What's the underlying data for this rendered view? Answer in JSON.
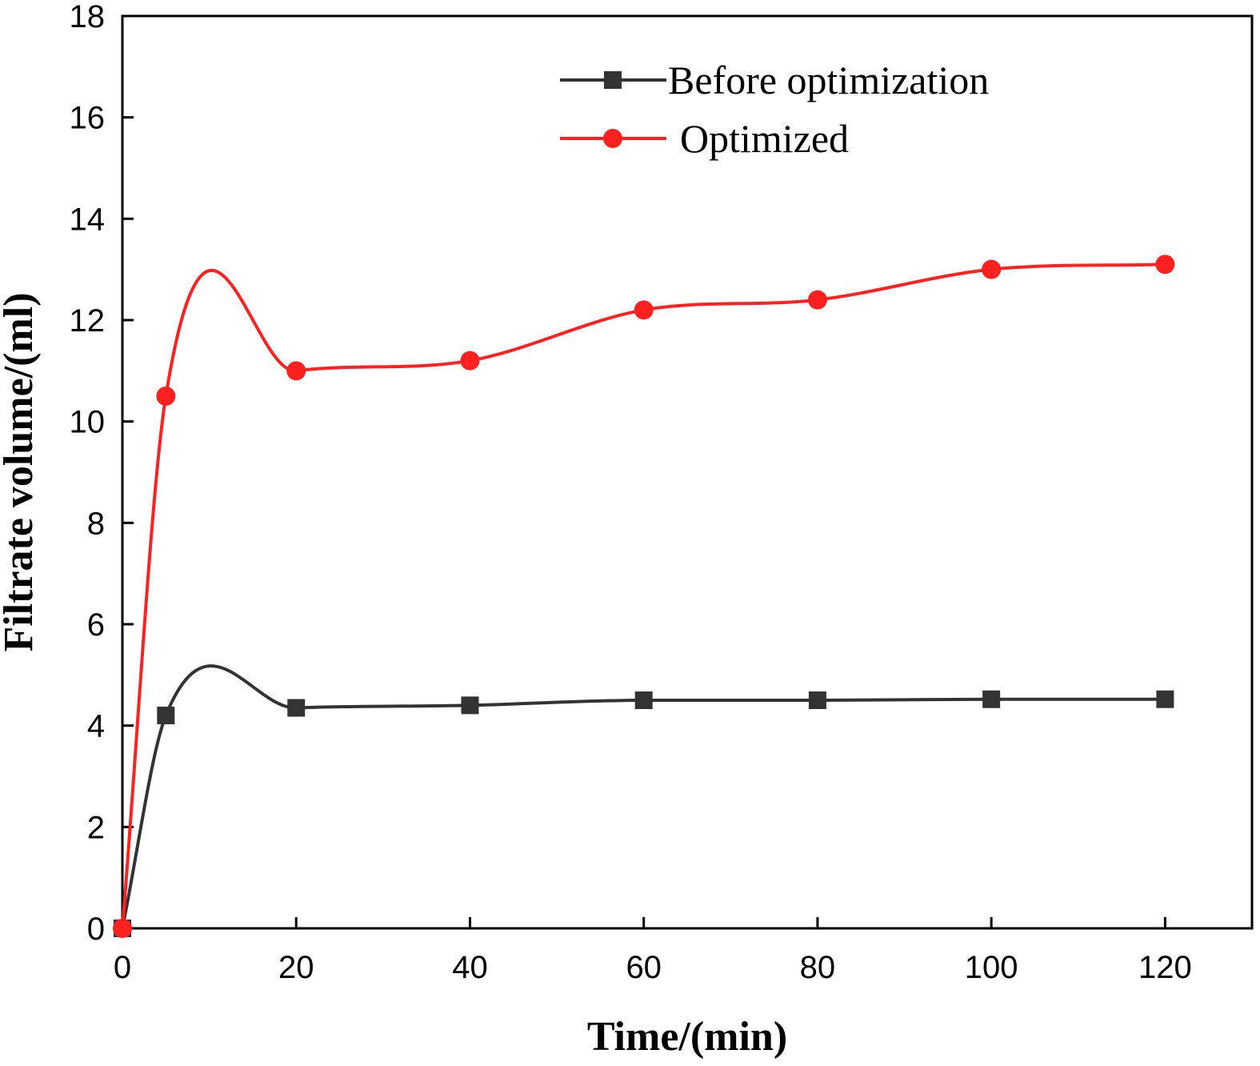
{
  "chart_data": {
    "type": "line",
    "xlabel": "Time/(min)",
    "ylabel": "Filtrate volume/(ml)",
    "xlim": [
      0,
      130
    ],
    "ylim": [
      0,
      18
    ],
    "xticks": [
      0,
      20,
      40,
      60,
      80,
      100,
      120
    ],
    "yticks": [
      0,
      2,
      4,
      6,
      8,
      10,
      12,
      14,
      16,
      18
    ],
    "grid": false,
    "legend_position": "top-center",
    "smooth": true,
    "series": [
      {
        "name": "Before optimization",
        "color": "#333333",
        "marker": "square",
        "x": [
          0,
          5,
          20,
          40,
          60,
          80,
          100,
          120
        ],
        "y": [
          0,
          4.2,
          4.35,
          4.4,
          4.5,
          4.5,
          4.52,
          4.52
        ]
      },
      {
        "name": "Optimized",
        "color": "#ff2020",
        "marker": "circle",
        "x": [
          0,
          5,
          20,
          40,
          60,
          80,
          100,
          120
        ],
        "y": [
          0,
          10.5,
          11.0,
          11.2,
          12.2,
          12.4,
          13.0,
          13.1
        ]
      }
    ]
  }
}
